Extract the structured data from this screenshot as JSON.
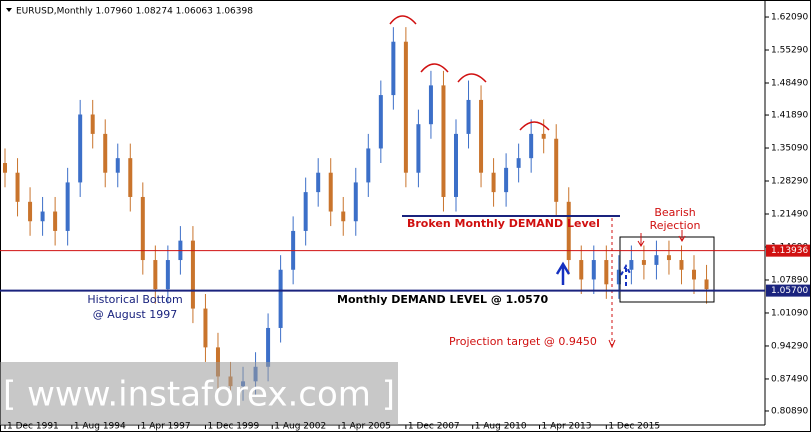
{
  "chart_data": {
    "type": "ohlc",
    "title": "EURUSD,Monthly  1.07960 1.08274 1.06063 1.06398",
    "x": [
      0,
      6,
      12,
      18,
      24,
      30,
      36,
      42,
      48,
      54,
      60,
      66,
      72,
      78,
      84,
      90,
      96,
      102,
      108,
      114,
      120,
      126,
      132,
      138,
      144,
      150,
      156,
      162,
      168,
      174,
      180,
      186,
      192,
      198,
      204,
      210,
      216,
      222,
      228,
      234,
      240,
      246,
      252,
      258,
      264,
      270,
      276,
      282,
      288,
      294,
      300,
      306,
      312,
      318,
      324,
      330,
      336
    ],
    "open": [
      1.32,
      1.3,
      1.24,
      1.2,
      1.22,
      1.18,
      1.28,
      1.42,
      1.38,
      1.3,
      1.33,
      1.25,
      1.12,
      1.06,
      1.12,
      1.16,
      1.02,
      0.94,
      0.88,
      0.86,
      0.87,
      0.9,
      0.98,
      1.1,
      1.18,
      1.26,
      1.3,
      1.22,
      1.2,
      1.28,
      1.35,
      1.46,
      1.57,
      1.3,
      1.4,
      1.48,
      1.25,
      1.38,
      1.45,
      1.3,
      1.26,
      1.31,
      1.33,
      1.38,
      1.37,
      1.24,
      1.12,
      1.08,
      1.12,
      1.07,
      1.1,
      1.12,
      1.11,
      1.13,
      1.12,
      1.1,
      1.08
    ],
    "high": [
      1.35,
      1.33,
      1.27,
      1.25,
      1.25,
      1.31,
      1.45,
      1.45,
      1.41,
      1.36,
      1.36,
      1.28,
      1.15,
      1.15,
      1.19,
      1.19,
      1.05,
      0.97,
      0.91,
      0.9,
      0.93,
      1.01,
      1.13,
      1.21,
      1.29,
      1.33,
      1.33,
      1.25,
      1.31,
      1.38,
      1.49,
      1.6,
      1.6,
      1.43,
      1.51,
      1.51,
      1.41,
      1.49,
      1.48,
      1.33,
      1.34,
      1.36,
      1.41,
      1.41,
      1.4,
      1.27,
      1.15,
      1.15,
      1.15,
      1.13,
      1.15,
      1.15,
      1.16,
      1.16,
      1.15,
      1.13,
      1.11
    ],
    "low": [
      1.27,
      1.21,
      1.17,
      1.17,
      1.15,
      1.15,
      1.25,
      1.35,
      1.27,
      1.27,
      1.22,
      1.09,
      1.03,
      1.03,
      1.09,
      0.99,
      0.91,
      0.85,
      0.83,
      0.83,
      0.84,
      0.87,
      0.95,
      1.07,
      1.15,
      1.23,
      1.19,
      1.17,
      1.17,
      1.25,
      1.32,
      1.43,
      1.27,
      1.27,
      1.37,
      1.22,
      1.22,
      1.35,
      1.27,
      1.23,
      1.23,
      1.28,
      1.3,
      1.34,
      1.21,
      1.09,
      1.05,
      1.05,
      1.04,
      1.04,
      1.07,
      1.08,
      1.08,
      1.09,
      1.07,
      1.05,
      1.03
    ],
    "close": [
      1.3,
      1.24,
      1.2,
      1.22,
      1.18,
      1.28,
      1.42,
      1.38,
      1.3,
      1.33,
      1.25,
      1.12,
      1.06,
      1.12,
      1.16,
      1.02,
      0.94,
      0.88,
      0.86,
      0.87,
      0.9,
      0.98,
      1.1,
      1.18,
      1.26,
      1.3,
      1.22,
      1.2,
      1.28,
      1.35,
      1.46,
      1.57,
      1.3,
      1.4,
      1.48,
      1.25,
      1.38,
      1.45,
      1.3,
      1.26,
      1.31,
      1.33,
      1.38,
      1.37,
      1.24,
      1.12,
      1.08,
      1.12,
      1.07,
      1.1,
      1.12,
      1.11,
      1.13,
      1.12,
      1.1,
      1.08,
      1.06
    ],
    "up_color": "#3c6fc8",
    "down_color": "#c9742c",
    "xlim": [
      -2.4,
      364
    ],
    "ylim": [
      0.78,
      1.6395
    ],
    "xticks": [
      {
        "value": 0,
        "label": "1 Dec 1991"
      },
      {
        "value": 32,
        "label": "1 Aug 1994"
      },
      {
        "value": 64,
        "label": "1 Apr 1997"
      },
      {
        "value": 96,
        "label": "1 Dec 1999"
      },
      {
        "value": 128,
        "label": "1 Aug 2002"
      },
      {
        "value": 160,
        "label": "1 Apr 2005"
      },
      {
        "value": 192,
        "label": "1 Dec 2007"
      },
      {
        "value": 224,
        "label": "1 Aug 2010"
      },
      {
        "value": 256,
        "label": "1 Apr 2013"
      },
      {
        "value": 288,
        "label": "1 Dec 2015"
      }
    ],
    "yticks": [
      {
        "value": 1.6209,
        "label": "1.62090"
      },
      {
        "value": 1.5529,
        "label": "1.55290"
      },
      {
        "value": 1.4849,
        "label": "1.48490"
      },
      {
        "value": 1.4189,
        "label": "1.41890"
      },
      {
        "value": 1.3509,
        "label": "1.35090"
      },
      {
        "value": 1.2829,
        "label": "1.28290"
      },
      {
        "value": 1.2149,
        "label": "1.21490"
      },
      {
        "value": 1.1469,
        "label": "1.14690"
      },
      {
        "value": 1.0789,
        "label": "1.07890"
      },
      {
        "value": 1.0109,
        "label": "1.01090"
      },
      {
        "value": 0.9429,
        "label": "0.94290"
      },
      {
        "value": 0.8749,
        "label": "0.87490"
      },
      {
        "value": 0.8089,
        "label": "0.80890"
      }
    ],
    "levels": [
      {
        "value": 1.13936,
        "label": "1.13936",
        "color": "#d01010"
      },
      {
        "value": 1.057,
        "label": "1.05700",
        "color": "#1a237e"
      }
    ],
    "annotations": [
      "Broken Monthly DEMAND Level",
      "Bearish",
      "Rejection",
      "Historical Bottom",
      "@ August 1997",
      "Monthly DEMAND LEVEL @ 1.0570",
      "Projection target @ 0.9450"
    ],
    "watermark": "[ www.instaforex.com ]"
  }
}
